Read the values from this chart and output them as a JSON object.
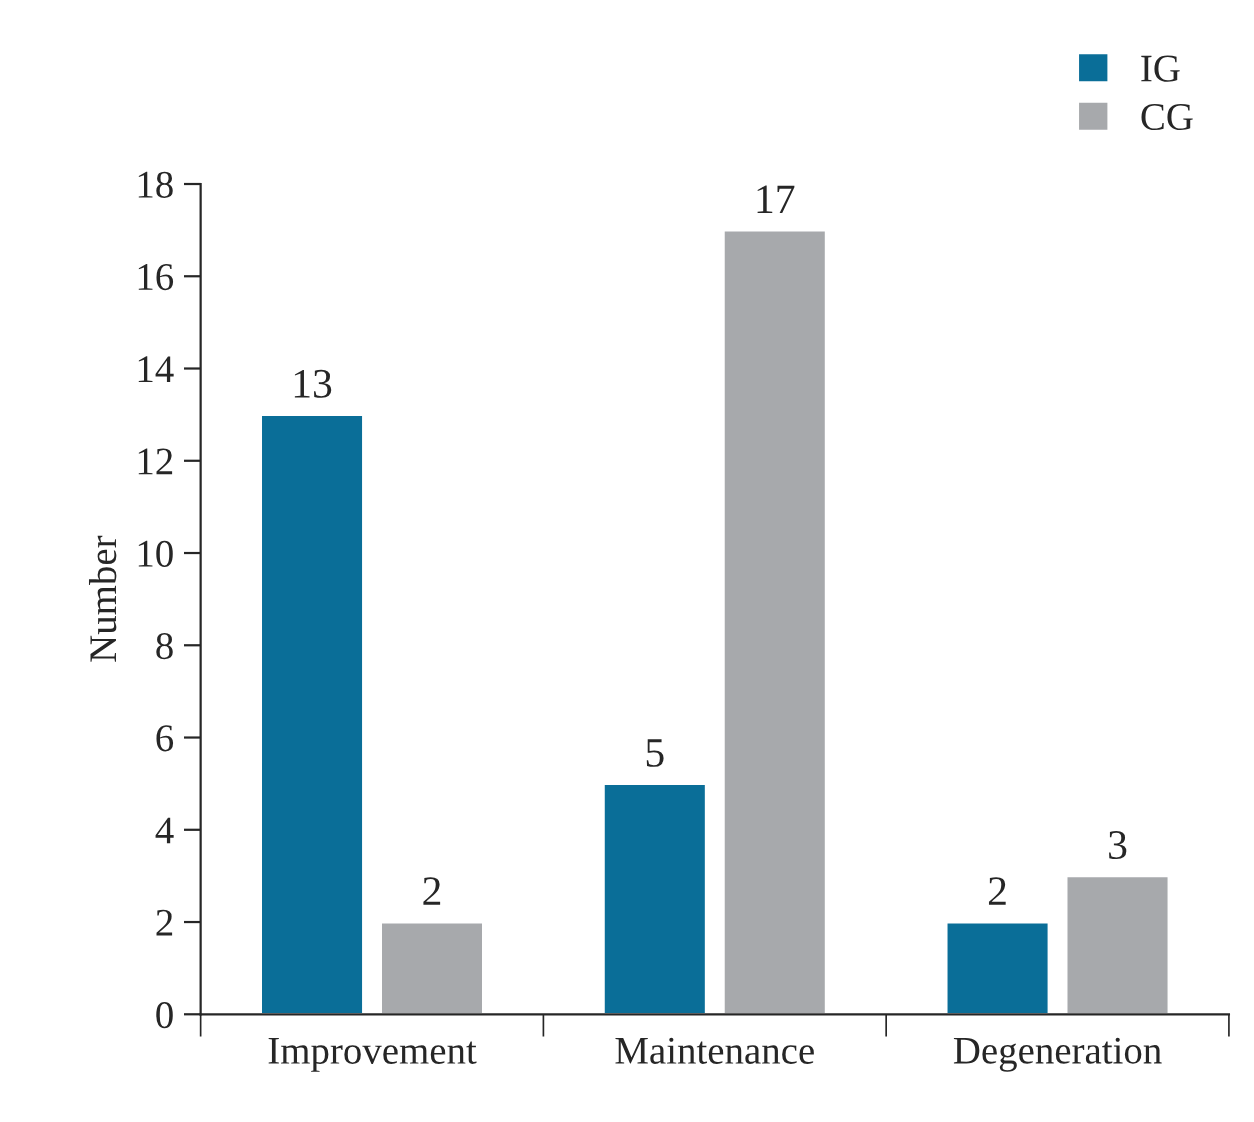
{
  "chart_data": {
    "type": "bar",
    "ylabel": "Number",
    "categories": [
      "Improvement",
      "Maintenance",
      "Degeneration"
    ],
    "series": [
      {
        "name": "IG",
        "color": "#0a6e98",
        "values": [
          13,
          5,
          2
        ]
      },
      {
        "name": "CG",
        "color": "#a7a9ac",
        "values": [
          2,
          17,
          3
        ]
      }
    ],
    "ylim": [
      0,
      18
    ],
    "yticks": [
      0,
      2,
      4,
      6,
      8,
      10,
      12,
      14,
      16,
      18
    ],
    "data_labels": true,
    "legend": "top right",
    "grid": false
  }
}
